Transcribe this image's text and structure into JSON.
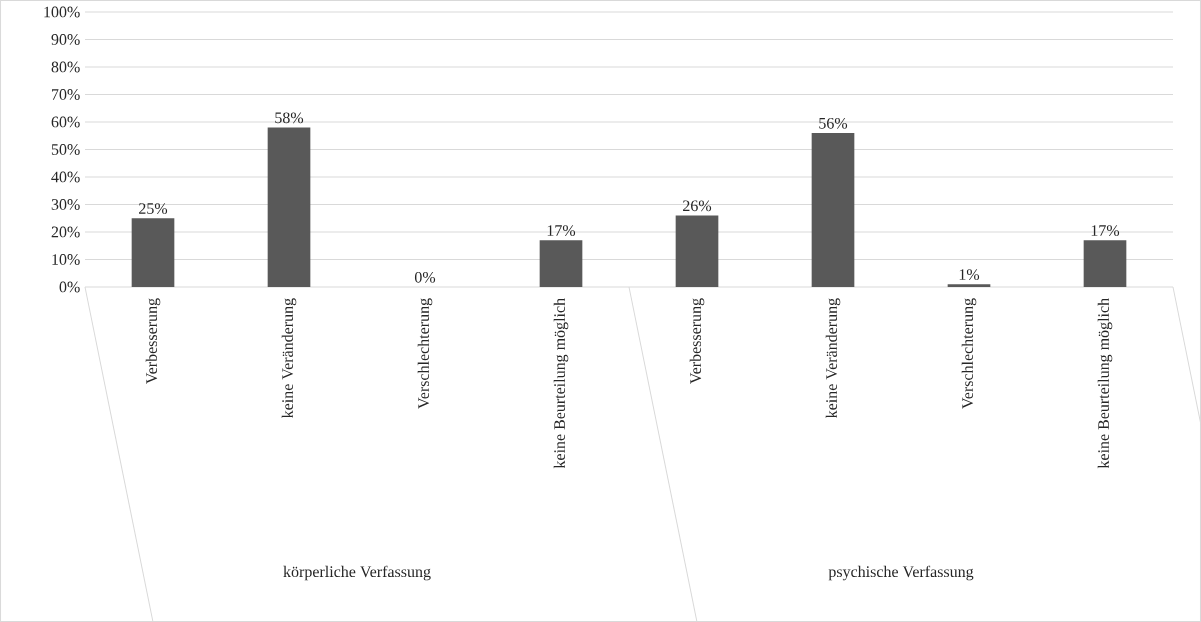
{
  "chart_data": {
    "type": "bar",
    "categories": [
      "Verbesserung",
      "keine Veränderung",
      "Verschlechterung",
      "keine Beurteilung möglich",
      "Verbesserung",
      "keine Veränderung",
      "Verschlechterung",
      "keine Beurteilung möglich"
    ],
    "values": [
      25,
      58,
      0,
      17,
      26,
      56,
      1,
      17
    ],
    "value_labels": [
      "25%",
      "58%",
      "0%",
      "17%",
      "26%",
      "56%",
      "1%",
      "17%"
    ],
    "color": "#595959",
    "ylim": [
      0,
      100
    ],
    "yticks": [
      {
        "value": 0,
        "label": "0%"
      },
      {
        "value": 10,
        "label": "10%"
      },
      {
        "value": 20,
        "label": "20%"
      },
      {
        "value": 30,
        "label": "30%"
      },
      {
        "value": 40,
        "label": "40%"
      },
      {
        "value": 50,
        "label": "50%"
      },
      {
        "value": 60,
        "label": "60%"
      },
      {
        "value": 70,
        "label": "70%"
      },
      {
        "value": 80,
        "label": "80%"
      },
      {
        "value": 90,
        "label": "90%"
      },
      {
        "value": 100,
        "label": "100%"
      }
    ],
    "grid": "y",
    "annotations": [
      "körperliche Verfassung",
      "psychische Verfassung"
    ]
  }
}
